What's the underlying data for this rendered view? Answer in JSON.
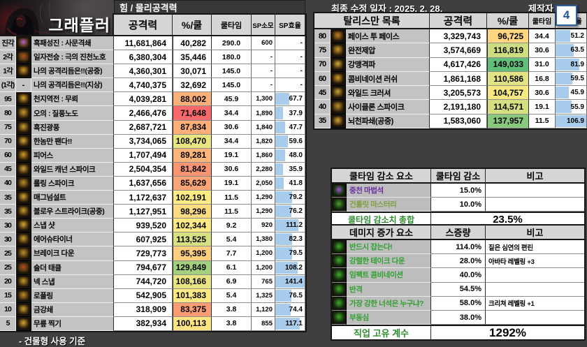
{
  "page": {
    "title_caption": "그래플러",
    "stat_header": "힘 / 물리공격력",
    "updated": "최종 수정 일자 : 2025. 2. 28.",
    "author_label": "제작자 :",
    "badge": "4",
    "footnote": "- 건물형 사용 기준"
  },
  "colors": {
    "heat_min": "#F8696B",
    "heat_mid": "#FFEB84",
    "heat_max": "#63BE7B",
    "bar_blue": "#A9CBEC",
    "badge_blue": "#2E5FA3",
    "factor_green": "#2EA02E",
    "factor_purple": "#6B2FA0"
  },
  "heat_scale": {
    "min": 71648,
    "mid": 101800,
    "max": 149033
  },
  "skill_table": {
    "headers": {
      "atk": "공격력",
      "pct": "%/쿨",
      "cd": "쿨타임",
      "sp": "SP소모",
      "eff": "SP효율"
    },
    "eff_bar_max": 141.4,
    "rows": [
      {
        "lv": "진각",
        "name": "흑패성진 : 사문격쇄",
        "atk": "11,681,864",
        "pct": "40,282",
        "pct_val": null,
        "cd": "290.0",
        "sp": "600",
        "eff": "-",
        "eff_val": null,
        "icon": "#b95fc9"
      },
      {
        "lv": "2각",
        "name": "일자전승 : 극의 진천노호",
        "atk": "6,380,304",
        "pct": "35,446",
        "pct_val": null,
        "cd": "180.0",
        "sp": "-",
        "eff": "-",
        "eff_val": null,
        "icon": "#b0541e"
      },
      {
        "lv": "1각",
        "name": "나의 공격리듬은!!(공중)",
        "atk": "4,360,301",
        "pct": "30,071",
        "pct_val": null,
        "cd": "145.0",
        "sp": "-",
        "eff": "-",
        "eff_val": null,
        "icon": "#d2962c"
      },
      {
        "lv": "(1각)",
        "name": "나의 공격리듬은!!(지상)",
        "atk": "4,740,375",
        "pct": "32,692",
        "pct_val": null,
        "cd": "145.0",
        "sp": "-",
        "eff": "-",
        "eff_val": null,
        "icon": null
      },
      {
        "lv": "95",
        "name": "천지역전 : 무뢰",
        "atk": "4,039,281",
        "pct": "88,002",
        "pct_val": 88002,
        "cd": "45.9",
        "sp": "1,300",
        "eff": "67.7",
        "eff_val": 67.7,
        "icon": "#d8a82e"
      },
      {
        "lv": "80",
        "name": "오의 : 질풍노도",
        "atk": "2,466,476",
        "pct": "71,648",
        "pct_val": 71648,
        "cd": "34.4",
        "sp": "1,890",
        "eff": "37.9",
        "eff_val": 37.9,
        "icon": "#c59a33"
      },
      {
        "lv": "75",
        "name": "흑진광풍",
        "atk": "2,687,721",
        "pct": "87,834",
        "pct_val": 87834,
        "cd": "30.6",
        "sp": "1,840",
        "eff": "47.7",
        "eff_val": 47.7,
        "icon": "#caa02f"
      },
      {
        "lv": "70",
        "name": "한놈만 팬다!!",
        "atk": "3,734,065",
        "pct": "108,470",
        "pct_val": 108470,
        "cd": "34.4",
        "sp": "1,820",
        "eff": "59.6",
        "eff_val": 59.6,
        "icon": "#d3ab36"
      },
      {
        "lv": "60",
        "name": "피어스",
        "atk": "1,707,494",
        "pct": "89,281",
        "pct_val": 89281,
        "cd": "19.1",
        "sp": "1,860",
        "eff": "48.0",
        "eff_val": 48.0,
        "icon": "#d49b25"
      },
      {
        "lv": "45",
        "name": "와일드 캐넌 스파이크",
        "atk": "2,504,354",
        "pct": "81,842",
        "pct_val": 81842,
        "cd": "30.6",
        "sp": "2,280",
        "eff": "35.9",
        "eff_val": 35.9,
        "icon": "#c9a53a"
      },
      {
        "lv": "40",
        "name": "롤링 스파이크",
        "atk": "1,637,656",
        "pct": "85,629",
        "pct_val": 85629,
        "cd": "19.1",
        "sp": "2,050",
        "eff": "41.8",
        "eff_val": 41.8,
        "icon": "#b88f28"
      },
      {
        "lv": "35",
        "name": "매그넘설트",
        "atk": "1,172,637",
        "pct": "102,191",
        "pct_val": 102191,
        "cd": "11.5",
        "sp": "1,290",
        "eff": "79.2",
        "eff_val": 79.2,
        "icon": "#d2a630"
      },
      {
        "lv": "35",
        "name": "블로우 스트라이크(공중)",
        "atk": "1,127,951",
        "pct": "98,296",
        "pct_val": 98296,
        "cd": "11.5",
        "sp": "1,290",
        "eff": "76.2",
        "eff_val": 76.2,
        "icon": "#c79c2e"
      },
      {
        "lv": "30",
        "name": "스냅 샷",
        "atk": "939,520",
        "pct": "102,344",
        "pct_val": 102344,
        "cd": "9.2",
        "sp": "920",
        "eff": "111.2",
        "eff_val": 111.2,
        "icon": "#d0a832"
      },
      {
        "lv": "30",
        "name": "에어슈타이너",
        "atk": "607,925",
        "pct": "113,525",
        "pct_val": 113525,
        "cd": "5.4",
        "sp": "1,380",
        "eff": "82.3",
        "eff_val": 82.3,
        "icon": "#c89b2a"
      },
      {
        "lv": "25",
        "name": "브레이크 다운",
        "atk": "729,773",
        "pct": "95,395",
        "pct_val": 95395,
        "cd": "7.7",
        "sp": "1,200",
        "eff": "79.5",
        "eff_val": 79.5,
        "icon": "#b8902b"
      },
      {
        "lv": "25",
        "name": "숄더 태클",
        "atk": "794,677",
        "pct": "129,849",
        "pct_val": 129849,
        "cd": "6.1",
        "sp": "1,200",
        "eff": "108.2",
        "eff_val": 108.2,
        "icon": "#b44b1f"
      },
      {
        "lv": "20",
        "name": "넥 스냅",
        "atk": "744,720",
        "pct": "108,166",
        "pct_val": 108166,
        "cd": "6.9",
        "sp": "765",
        "eff": "141.4",
        "eff_val": 141.4,
        "icon": "#c79a2c"
      },
      {
        "lv": "15",
        "name": "로플링",
        "atk": "542,905",
        "pct": "101,383",
        "pct_val": 101383,
        "cd": "5.4",
        "sp": "1,325",
        "eff": "76.5",
        "eff_val": 76.5,
        "icon": "#bf8b25"
      },
      {
        "lv": "10",
        "name": "금강쇄",
        "atk": "318,909",
        "pct": "83,375",
        "pct_val": 83375,
        "cd": "3.8",
        "sp": "1,120",
        "eff": "74.4",
        "eff_val": 74.4,
        "icon": "#cfa22f"
      },
      {
        "lv": "5",
        "name": "무릎 찍기",
        "atk": "382,934",
        "pct": "100,113",
        "pct_val": 100113,
        "cd": "3.8",
        "sp": "855",
        "eff": "117.1",
        "eff_val": 117.1,
        "icon": "#d0a930"
      }
    ]
  },
  "talisman_table": {
    "title": "탈리스만 목록",
    "headers": {
      "atk": "공격력",
      "pct": "%/쿨",
      "cd": "쿨타임",
      "eff": "SP효율"
    },
    "eff_bar_max": 106.9,
    "rows": [
      {
        "lv": "80",
        "name": "페이스 투 페이스",
        "atk": "3,329,743",
        "pct": "96,725",
        "pct_val": 96725,
        "cd": "34.4",
        "eff": "51.2",
        "eff_val": 51.2,
        "icon": "#c77f22"
      },
      {
        "lv": "75",
        "name": "완전제압",
        "atk": "3,574,669",
        "pct": "116,819",
        "pct_val": 116819,
        "cd": "30.6",
        "eff": "63.5",
        "eff_val": 63.5,
        "icon": "#cf9c2c"
      },
      {
        "lv": "70",
        "name": "강맹격파",
        "atk": "4,617,426",
        "pct": "149,033",
        "pct_val": 149033,
        "cd": "31.0",
        "eff": "81.9",
        "eff_val": 81.9,
        "icon": "#d3ab36"
      },
      {
        "lv": "60",
        "name": "콤비네이션 러쉬",
        "atk": "1,861,168",
        "pct": "110,586",
        "pct_val": 110586,
        "cd": "16.8",
        "eff": "59.5",
        "eff_val": 59.5,
        "icon": "#d49b25"
      },
      {
        "lv": "45",
        "name": "와일드 크러셔",
        "atk": "3,205,573",
        "pct": "104,757",
        "pct_val": 104757,
        "cd": "30.6",
        "eff": "45.9",
        "eff_val": 45.9,
        "icon": "#c9a53a"
      },
      {
        "lv": "40",
        "name": "사이클론 스파이크",
        "atk": "2,191,180",
        "pct": "114,571",
        "pct_val": 114571,
        "cd": "19.1",
        "eff": "55.9",
        "eff_val": 55.9,
        "icon": "#b88f28"
      },
      {
        "lv": "35",
        "name": "뇌천파쇄(공중)",
        "atk": "1,583,060",
        "pct": "137,957",
        "pct_val": 137957,
        "cd": "11.5",
        "eff": "106.9",
        "eff_val": 106.9,
        "icon": "#d2a630"
      }
    ]
  },
  "cooldown_table": {
    "headers": {
      "name": "쿨타임 감소 요소",
      "value": "쿨타임 감소",
      "note": "비고"
    },
    "rows": [
      {
        "name": "중천 마법석",
        "value": "15.0%",
        "note": "",
        "color": "#6B2FA0",
        "icon": "#9b59d0"
      },
      {
        "name": "건틀릿 마스터리",
        "value": "10.0%",
        "note": "",
        "color": "#7F9F3F",
        "icon": "#4e9a2f"
      }
    ],
    "total_label": "쿨타임 감소치 총합",
    "total_value": "23.5%"
  },
  "damage_table": {
    "headers": {
      "name": "데미지 증가 요소",
      "value": "스증량",
      "note": "비고"
    },
    "rows": [
      {
        "name": "반드시 잡는다!",
        "value": "114.0%",
        "note": "짙은 심연의 편린",
        "color": "#2EA02E",
        "icon": "#3fae2a"
      },
      {
        "name": "강렬한 테이크 다운",
        "value": "28.0%",
        "note": "아바타 레벨링 +3",
        "color": "#2EA02E",
        "icon": "#3fae2a"
      },
      {
        "name": "임팩트 콤비네이션",
        "value": "40.0%",
        "note": "",
        "color": "#2EA02E",
        "icon": "#3fae2a"
      },
      {
        "name": "반격",
        "value": "54.5%",
        "note": "",
        "color": "#2EA02E",
        "icon": "#3fae2a"
      },
      {
        "name": "가장 강한 너석은 누구냐?",
        "value": "58.0%",
        "note": "크리쳐 레벨링 +1",
        "color": "#2EA02E",
        "icon": "#3fae2a"
      },
      {
        "name": "부동심",
        "value": "38.0%",
        "note": "",
        "color": "#2EA02E",
        "icon": "#3fae2a"
      }
    ],
    "total_label": "직업 고유 계수",
    "total_value": "1292%"
  }
}
